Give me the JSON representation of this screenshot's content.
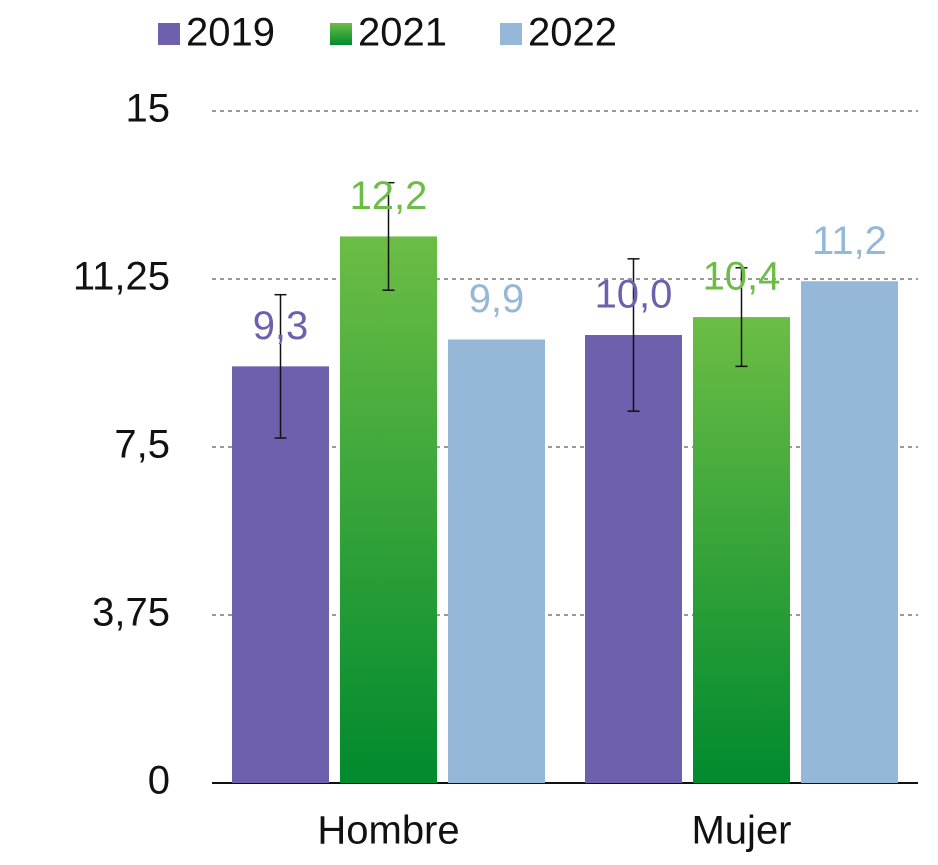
{
  "chart_data": {
    "type": "bar",
    "categories": [
      "Hombre",
      "Mujer"
    ],
    "series": [
      {
        "name": "2019",
        "color": "#6e60ad",
        "values": [
          9.3,
          10.0
        ],
        "value_labels": [
          "9,3",
          "10,0"
        ],
        "errors": [
          1.6,
          1.7
        ]
      },
      {
        "name": "2021",
        "color": "#6cbd45",
        "values": [
          12.2,
          10.4
        ],
        "value_labels": [
          "12,2",
          "10,4"
        ],
        "errors": [
          1.2,
          1.1
        ]
      },
      {
        "name": "2022",
        "color": "#95b8d9",
        "values": [
          9.9,
          11.2
        ],
        "value_labels": [
          "9,9",
          "11,2"
        ]
      }
    ],
    "ylim": [
      0,
      15
    ],
    "yticks": [
      0,
      {
        "value": 3.75,
        "label": "3,75"
      },
      {
        "value": 7.5,
        "label": "7,5"
      },
      {
        "value": 11.25,
        "label": "11,25"
      },
      15
    ],
    "grid": true,
    "legend": "top"
  }
}
